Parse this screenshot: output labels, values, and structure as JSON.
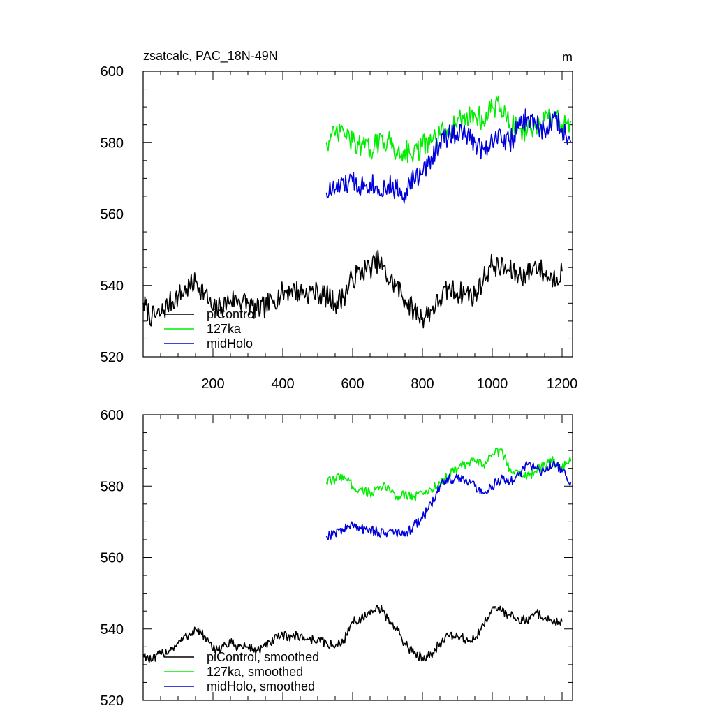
{
  "colors": {
    "piControl": "#000000",
    "127ka": "#00ee00",
    "midHolo": "#0000dd"
  },
  "chart_data": [
    {
      "type": "line",
      "title": "zsatcalc, PAC_18N-49N",
      "units": "m",
      "xlim": [
        0,
        1230
      ],
      "ylim": [
        520,
        600
      ],
      "xticks": [
        "200",
        "400",
        "600",
        "800",
        "1000",
        "1200"
      ],
      "yticks": [
        "520",
        "540",
        "560",
        "580",
        "600"
      ],
      "legend": "bottom-left",
      "series": [
        {
          "name": "piControl",
          "color": "#000000",
          "x": [
            0,
            25,
            50,
            75,
            100,
            125,
            150,
            175,
            200,
            225,
            250,
            275,
            300,
            325,
            350,
            375,
            400,
            425,
            450,
            475,
            500,
            525,
            550,
            575,
            600,
            625,
            650,
            675,
            700,
            725,
            750,
            775,
            800,
            825,
            850,
            875,
            900,
            925,
            950,
            975,
            1000,
            1025,
            1050,
            1075,
            1100,
            1125,
            1150,
            1175,
            1200
          ],
          "y": [
            535,
            531,
            532,
            535,
            537,
            539,
            541,
            538,
            533,
            534,
            536,
            536,
            535,
            533,
            534,
            536,
            538,
            539,
            538,
            538,
            538,
            537,
            535,
            537,
            542,
            544,
            545,
            547,
            542,
            540,
            536,
            533,
            531,
            533,
            536,
            539,
            538,
            538,
            537,
            542,
            546,
            545,
            544,
            543,
            543,
            546,
            543,
            542,
            544
          ]
        },
        {
          "name": "127ka",
          "color": "#00ee00",
          "x": [
            525,
            550,
            575,
            600,
            625,
            650,
            675,
            700,
            725,
            750,
            775,
            800,
            825,
            850,
            875,
            900,
            925,
            950,
            975,
            1000,
            1025,
            1050,
            1075,
            1100,
            1125,
            1150,
            1175,
            1200,
            1225
          ],
          "y": [
            580,
            582,
            583,
            580,
            579,
            578,
            580,
            581,
            577,
            578,
            577,
            579,
            580,
            582,
            584,
            586,
            587,
            588,
            586,
            590,
            590,
            585,
            584,
            583,
            584,
            586,
            587,
            585,
            586
          ]
        },
        {
          "name": "midHolo",
          "color": "#0000dd",
          "x": [
            525,
            550,
            575,
            600,
            625,
            650,
            675,
            700,
            725,
            750,
            775,
            800,
            825,
            850,
            875,
            900,
            925,
            950,
            975,
            1000,
            1025,
            1050,
            1075,
            1100,
            1125,
            1150,
            1175,
            1200,
            1225
          ],
          "y": [
            566,
            567,
            568,
            569,
            568,
            569,
            567,
            568,
            567,
            566,
            570,
            571,
            576,
            580,
            582,
            583,
            582,
            580,
            578,
            581,
            582,
            580,
            584,
            587,
            585,
            583,
            587,
            584,
            580
          ]
        }
      ]
    },
    {
      "type": "line",
      "title": "",
      "xlim": [
        0,
        1230
      ],
      "ylim": [
        520,
        600
      ],
      "xticks": [
        "200",
        "400",
        "600",
        "800",
        "1000",
        "1200"
      ],
      "yticks": [
        "520",
        "540",
        "560",
        "580",
        "600"
      ],
      "legend": "bottom-left",
      "series": [
        {
          "name": "piControl, smoothed",
          "color": "#000000",
          "x": [
            0,
            25,
            50,
            75,
            100,
            125,
            150,
            175,
            200,
            225,
            250,
            275,
            300,
            325,
            350,
            375,
            400,
            425,
            450,
            475,
            500,
            525,
            550,
            575,
            600,
            625,
            650,
            675,
            700,
            725,
            750,
            775,
            800,
            825,
            850,
            875,
            900,
            925,
            950,
            975,
            1000,
            1025,
            1050,
            1075,
            1100,
            1125,
            1150,
            1175,
            1200
          ],
          "y": [
            533,
            531,
            533,
            534,
            536,
            538,
            540,
            538,
            534,
            535,
            536,
            535,
            535,
            534,
            535,
            537,
            538,
            538,
            538,
            537,
            537,
            536,
            535,
            537,
            542,
            543,
            544,
            546,
            543,
            540,
            536,
            533,
            532,
            533,
            536,
            538,
            538,
            537,
            537,
            541,
            546,
            545,
            544,
            543,
            542,
            545,
            543,
            542,
            542
          ]
        },
        {
          "name": "127ka, smoothed",
          "color": "#00ee00",
          "x": [
            525,
            550,
            575,
            600,
            625,
            650,
            675,
            700,
            725,
            750,
            775,
            800,
            825,
            850,
            875,
            900,
            925,
            950,
            975,
            1000,
            1025,
            1050,
            1075,
            1100,
            1125,
            1150,
            1175,
            1200,
            1225
          ],
          "y": [
            581,
            582,
            583,
            580,
            579,
            578,
            579,
            580,
            577,
            578,
            577,
            578,
            579,
            581,
            583,
            585,
            586,
            587,
            586,
            589,
            590,
            585,
            584,
            583,
            584,
            586,
            587,
            585,
            587
          ]
        },
        {
          "name": "midHolo, smoothed",
          "color": "#0000dd",
          "x": [
            525,
            550,
            575,
            600,
            625,
            650,
            675,
            700,
            725,
            750,
            775,
            800,
            825,
            850,
            875,
            900,
            925,
            950,
            975,
            1000,
            1025,
            1050,
            1075,
            1100,
            1125,
            1150,
            1175,
            1200,
            1225
          ],
          "y": [
            566,
            567,
            568,
            569,
            568,
            568,
            567,
            567,
            567,
            566,
            569,
            571,
            575,
            580,
            582,
            582,
            582,
            580,
            578,
            580,
            582,
            581,
            583,
            586,
            585,
            584,
            587,
            584,
            581
          ]
        }
      ]
    }
  ]
}
